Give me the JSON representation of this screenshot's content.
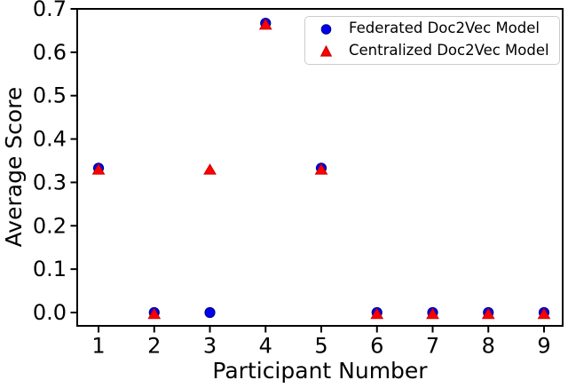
{
  "figure": {
    "background": "#ffffff",
    "axis_color": "#000000"
  },
  "chart_data": {
    "type": "scatter",
    "title": "",
    "xlabel": "Participant Number",
    "ylabel": "Average Score",
    "x": [
      1,
      2,
      3,
      4,
      5,
      6,
      7,
      8,
      9
    ],
    "x_tick_labels": [
      "1",
      "2",
      "3",
      "4",
      "5",
      "6",
      "7",
      "8",
      "9"
    ],
    "y_tick_labels": [
      "0.0",
      "0.1",
      "0.2",
      "0.3",
      "0.4",
      "0.5",
      "0.6",
      "0.7"
    ],
    "xlim": [
      0.617,
      9.335
    ],
    "ylim": [
      -0.0307,
      0.7
    ],
    "grid": false,
    "legend_position": "upper right",
    "series": [
      {
        "name": "Federated Doc2Vec Model",
        "marker": "circle",
        "color": "#0000ee",
        "edge_color": "#000090",
        "values": [
          0.333,
          0.0,
          0.0,
          0.667,
          0.333,
          0.0,
          0.0,
          0.0,
          0.0
        ]
      },
      {
        "name": "Centralized Doc2Vec Model",
        "marker": "triangle-up",
        "color": "#ff0000",
        "edge_color": "#cc0000",
        "values": [
          0.333,
          0.0,
          0.333,
          0.667,
          0.333,
          0.0,
          0.0,
          0.0,
          0.0
        ]
      }
    ]
  }
}
